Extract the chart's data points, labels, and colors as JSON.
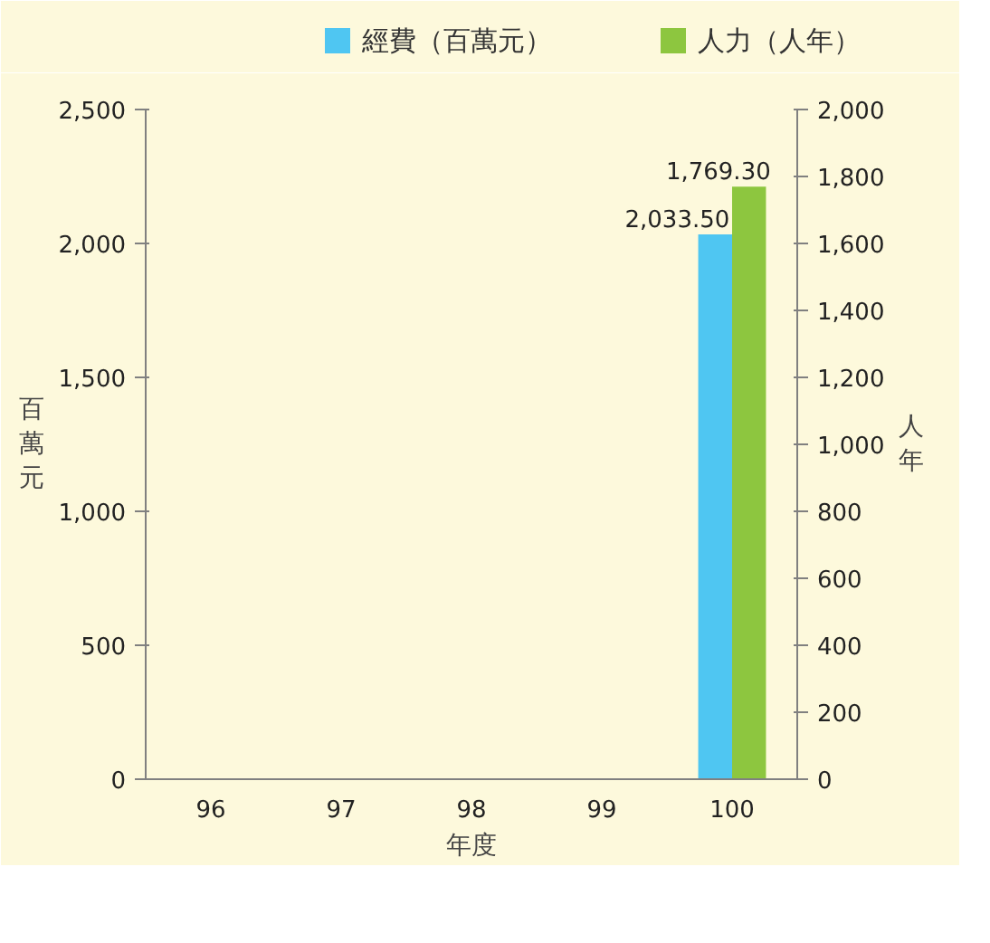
{
  "chart_data": {
    "type": "bar",
    "categories": [
      "96",
      "97",
      "98",
      "99",
      "100"
    ],
    "xlabel": "年度",
    "ylabel": "百萬元",
    "y2label": "人年",
    "series": [
      {
        "name": "經費（百萬元）",
        "color": "#4fc6f2",
        "values": [
          null,
          null,
          null,
          null,
          2033.5
        ],
        "value_labels": [
          null,
          null,
          null,
          null,
          "2,033.50"
        ]
      },
      {
        "name": "人力（人年）",
        "color": "#8dc63f",
        "axis": "y2",
        "values": [
          null,
          null,
          null,
          null,
          1769.3
        ],
        "value_labels": [
          null,
          null,
          null,
          null,
          "1,769.30"
        ]
      }
    ],
    "ylim": [
      0,
      2500
    ],
    "yticks": [
      {
        "value": 0,
        "label": "0"
      },
      {
        "value": 500,
        "label": "500"
      },
      {
        "value": 1000,
        "label": "1,000"
      },
      {
        "value": 1500,
        "label": "1,500"
      },
      {
        "value": 2000,
        "label": "2,000"
      },
      {
        "value": 2500,
        "label": "2,500"
      }
    ],
    "y2lim": [
      0,
      2000
    ],
    "y2ticks": [
      {
        "value": 0,
        "label": "0"
      },
      {
        "value": 200,
        "label": "200"
      },
      {
        "value": 400,
        "label": "400"
      },
      {
        "value": 600,
        "label": "600"
      },
      {
        "value": 800,
        "label": "800"
      },
      {
        "value": 1000,
        "label": "1,000"
      },
      {
        "value": 1200,
        "label": "1,200"
      },
      {
        "value": 1400,
        "label": "1,400"
      },
      {
        "value": 1600,
        "label": "1,600"
      },
      {
        "value": 1800,
        "label": "1,800"
      },
      {
        "value": 2000,
        "label": "2,000"
      }
    ],
    "grid": false,
    "legend": "top"
  }
}
